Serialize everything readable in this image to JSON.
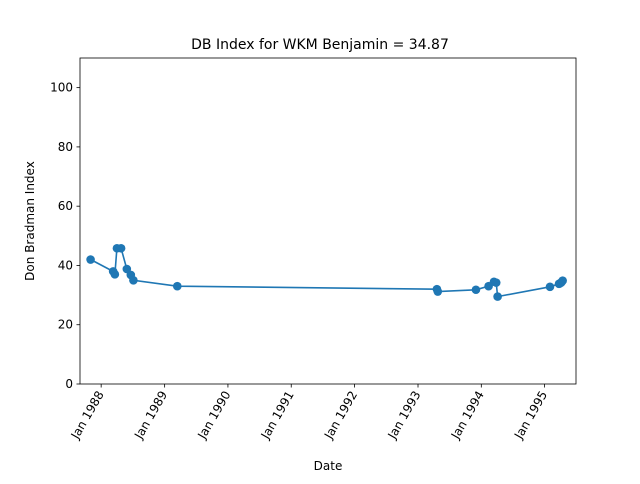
{
  "chart_data": {
    "type": "line",
    "title": "DB Index for WKM Benjamin = 34.87",
    "xlabel": "Date",
    "ylabel": "Don Bradman Index",
    "xlim": [
      "1987-09-01",
      "1995-07-01"
    ],
    "ylim": [
      0,
      110
    ],
    "x_ticks": [
      "1988-01-01",
      "1989-01-01",
      "1990-01-01",
      "1991-01-01",
      "1992-01-01",
      "1993-01-01",
      "1994-01-01",
      "1995-01-01"
    ],
    "x_tick_labels": [
      "Jan 1988",
      "Jan 1989",
      "Jan 1990",
      "Jan 1991",
      "Jan 1992",
      "Jan 1993",
      "Jan 1994",
      "Jan 1995"
    ],
    "y_ticks": [
      0,
      20,
      40,
      60,
      80,
      100
    ],
    "y_tick_labels": [
      "0",
      "20",
      "40",
      "60",
      "80",
      "100"
    ],
    "grid": false,
    "legend": "none",
    "series": [
      {
        "color": "#1f77b4",
        "points": [
          {
            "x": "1987-11-01",
            "y": 42.0
          },
          {
            "x": "1988-03-10",
            "y": 38.0
          },
          {
            "x": "1988-03-20",
            "y": 37.0
          },
          {
            "x": "1988-04-01",
            "y": 45.8
          },
          {
            "x": "1988-04-25",
            "y": 45.8
          },
          {
            "x": "1988-05-28",
            "y": 38.8
          },
          {
            "x": "1988-06-20",
            "y": 36.8
          },
          {
            "x": "1988-07-05",
            "y": 35.0
          },
          {
            "x": "1989-03-15",
            "y": 33.0
          },
          {
            "x": "1993-04-20",
            "y": 32.0
          },
          {
            "x": "1993-04-25",
            "y": 31.2
          },
          {
            "x": "1993-12-01",
            "y": 31.8
          },
          {
            "x": "1994-02-12",
            "y": 33.0
          },
          {
            "x": "1994-03-15",
            "y": 34.5
          },
          {
            "x": "1994-03-28",
            "y": 34.2
          },
          {
            "x": "1994-04-05",
            "y": 29.5
          },
          {
            "x": "1995-02-01",
            "y": 32.8
          },
          {
            "x": "1995-03-25",
            "y": 33.8
          },
          {
            "x": "1995-04-01",
            "y": 34.0
          },
          {
            "x": "1995-04-08",
            "y": 34.3
          },
          {
            "x": "1995-04-15",
            "y": 34.87
          }
        ]
      }
    ]
  }
}
